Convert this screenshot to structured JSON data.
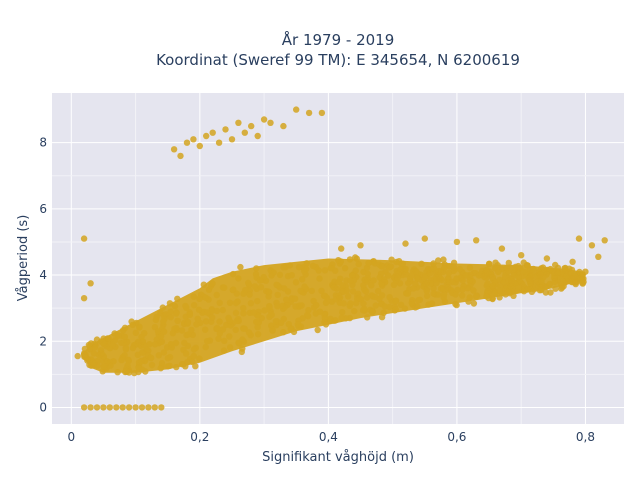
{
  "chart_data": {
    "type": "scatter",
    "title": "År 1979 - 2019",
    "subtitle": "Koordinat (Sweref 99 TM): E 345654, N 6200619",
    "xlabel": "Signifikant våghöjd (m)",
    "ylabel": "Vågperiod (s)",
    "xlim": [
      -0.03,
      0.86
    ],
    "ylim": [
      -0.5,
      9.5
    ],
    "x_ticks": [
      "0",
      "0,2",
      "0,4",
      "0,6",
      "0,8"
    ],
    "x_tick_values": [
      0,
      0.2,
      0.4,
      0.6,
      0.8
    ],
    "y_ticks": [
      "0",
      "2",
      "4",
      "6",
      "8"
    ],
    "y_tick_values": [
      0,
      2,
      4,
      6,
      8
    ],
    "grid": true,
    "marker_color": "#d4a420",
    "background_color": "#e5e5ef",
    "series": [
      {
        "points": [
          [
            0.02,
            0.0
          ],
          [
            0.03,
            0.0
          ],
          [
            0.04,
            0.0
          ],
          [
            0.05,
            0.0
          ],
          [
            0.06,
            0.0
          ],
          [
            0.07,
            0.0
          ],
          [
            0.08,
            0.0
          ],
          [
            0.09,
            0.0
          ],
          [
            0.1,
            0.0
          ],
          [
            0.11,
            0.0
          ],
          [
            0.12,
            0.0
          ],
          [
            0.13,
            0.0
          ],
          [
            0.14,
            0.0
          ],
          [
            0.01,
            1.55
          ],
          [
            0.02,
            1.6
          ],
          [
            0.02,
            5.1
          ],
          [
            0.02,
            3.3
          ],
          [
            0.03,
            3.75
          ],
          [
            0.04,
            2.05
          ],
          [
            0.05,
            1.95
          ],
          [
            0.16,
            7.8
          ],
          [
            0.17,
            7.6
          ],
          [
            0.18,
            8.0
          ],
          [
            0.19,
            8.1
          ],
          [
            0.2,
            7.9
          ],
          [
            0.21,
            8.2
          ],
          [
            0.22,
            8.3
          ],
          [
            0.23,
            8.0
          ],
          [
            0.24,
            8.4
          ],
          [
            0.25,
            8.1
          ],
          [
            0.26,
            8.6
          ],
          [
            0.27,
            8.3
          ],
          [
            0.28,
            8.5
          ],
          [
            0.29,
            8.2
          ],
          [
            0.3,
            8.7
          ],
          [
            0.31,
            8.6
          ],
          [
            0.33,
            8.5
          ],
          [
            0.35,
            9.0
          ],
          [
            0.37,
            8.9
          ],
          [
            0.39,
            8.9
          ],
          [
            0.42,
            4.8
          ],
          [
            0.45,
            4.9
          ],
          [
            0.52,
            4.95
          ],
          [
            0.55,
            5.1
          ],
          [
            0.6,
            5.0
          ],
          [
            0.63,
            5.05
          ],
          [
            0.67,
            4.8
          ],
          [
            0.7,
            4.6
          ],
          [
            0.74,
            4.5
          ],
          [
            0.79,
            5.1
          ],
          [
            0.81,
            4.9
          ],
          [
            0.83,
            5.05
          ],
          [
            0.82,
            4.55
          ],
          [
            0.8,
            4.1
          ],
          [
            0.78,
            4.4
          ]
        ]
      }
    ]
  }
}
